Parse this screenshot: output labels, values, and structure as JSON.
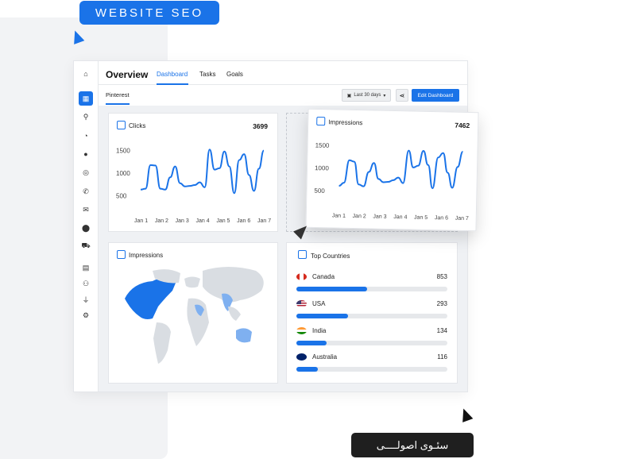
{
  "badges": {
    "seo": "WEBSITE SEO",
    "persian": "سئـوی اصولــــی"
  },
  "header": {
    "title": "Overview",
    "tabs": [
      "Dashboard",
      "Tasks",
      "Goals"
    ]
  },
  "subbar": {
    "tab": "Pinterest",
    "date_range": "Last 30 days",
    "edit_label": "Edit Dashboard"
  },
  "sidebar": {
    "icons": [
      "home-icon",
      "dashboard-icon",
      "search-icon",
      "pie-chart-icon",
      "chat-icon",
      "target-icon",
      "phone-icon",
      "mail-icon",
      "location-icon",
      "cart-icon",
      "document-icon",
      "users-icon",
      "plug-icon",
      "gear-icon"
    ]
  },
  "cards": {
    "clicks": {
      "title": "Clicks",
      "value": "3699"
    },
    "impressions": {
      "title": "Impressions",
      "value": "7462"
    },
    "map": {
      "title": "Impressions"
    },
    "countries": {
      "title": "Top Countries",
      "items": [
        {
          "name": "Canada",
          "value": "853",
          "ratio": 0.47
        },
        {
          "name": "USA",
          "value": "293",
          "ratio": 0.34
        },
        {
          "name": "India",
          "value": "134",
          "ratio": 0.2
        },
        {
          "name": "Australia",
          "value": "116",
          "ratio": 0.14
        }
      ]
    }
  },
  "chart_data": [
    {
      "type": "line",
      "title": "Clicks",
      "x_ticks": [
        "Jan 1",
        "Jan 2",
        "Jan 3",
        "Jan 4",
        "Jan 5",
        "Jan 6",
        "Jan 7"
      ],
      "y_ticks": [
        "1500",
        "1000",
        "500"
      ],
      "ylim": [
        250,
        1650
      ],
      "values": [
        640,
        660,
        1180,
        1170,
        660,
        640,
        910,
        1150,
        780,
        710,
        720,
        740,
        800,
        690,
        1520,
        1080,
        1110,
        1480,
        1150,
        560,
        1290,
        1420,
        960,
        610,
        1100,
        1500
      ]
    },
    {
      "type": "line",
      "title": "Impressions",
      "x_ticks": [
        "Jan 1",
        "Jan 2",
        "Jan 3",
        "Jan 4",
        "Jan 5",
        "Jan 6",
        "Jan 7"
      ],
      "y_ticks": [
        "1500",
        "1000",
        "500"
      ],
      "ylim": [
        250,
        1650
      ],
      "values": [
        610,
        680,
        1180,
        1150,
        650,
        610,
        930,
        1130,
        780,
        710,
        720,
        760,
        820,
        700,
        1420,
        1050,
        1090,
        1420,
        1110,
        600,
        1280,
        1380,
        950,
        620,
        1080,
        1420
      ]
    }
  ],
  "colors": {
    "accent": "#1a73e8",
    "light_accent": "#7fb0f0"
  }
}
